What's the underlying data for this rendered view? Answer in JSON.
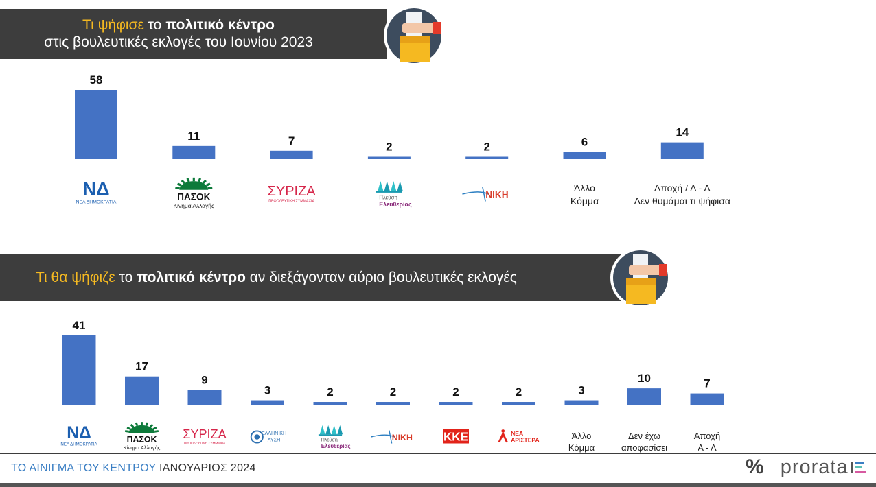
{
  "header1": {
    "part1": "Τι ψήφισε",
    "part2": " το ",
    "part3": "πολιτικό κέντρο",
    "line2": "στις βουλευτικές εκλογές του Ιουνίου 2023"
  },
  "header2": {
    "part1": "Τι θα ψήφιζε",
    "part2": " το ",
    "part3": "πολιτικό κέντρο",
    "part4": " αν διεξάγονταν αύριο βουλευτικές εκλογές"
  },
  "footer": {
    "part1": "ΤΟ ΑΙΝΙΓΜΑ ΤΟΥ ΚΕΝΤΡΟΥ",
    "part2": " ΙΑΝΟΥΑΡΙΟΣ 2024",
    "brand_symbol": "%",
    "brand_name": "prorata"
  },
  "logos": {
    "nd": [
      "ΝΕΑ ΔΗΜΟΚΡΑΤΙΑ"
    ],
    "pasok": [
      "ΠΑΣΟΚ",
      "Κίνημα Αλλαγής"
    ],
    "syriza": [
      "ΣΥΡΙΖΑ",
      "ΠΡΟΟΔΕΥΤΙΚΗ ΣΥΜΜΑΧΙΑ"
    ],
    "plefsi": [
      "Πλεύση",
      "Ελευθερίας"
    ],
    "niki": [
      "ΝΙΚΗ"
    ],
    "elliniki": [
      "ΕΛΛΗΝΙΚΗ",
      "ΛΥΣΗ"
    ],
    "kke": [
      "ΚΚΕ"
    ],
    "nea_aristera": [
      "ΝΕΑ",
      "ΑΡΙΣΤΕΡΑ"
    ]
  },
  "colors": {
    "bar": "#4472c4",
    "banner": "#3d3d3d",
    "accent_yellow": "#f5b921",
    "nd_blue": "#1c5fb0",
    "pasok_green": "#0d7a3a",
    "syriza_red": "#d6264a",
    "plefsi_purple": "#8a2a7a",
    "kke_red": "#e2231a"
  },
  "chart_data": [
    {
      "type": "bar",
      "categories": [
        "ΝΔ",
        "ΠΑΣΟΚ",
        "ΣΥΡΙΖΑ",
        "Πλεύση Ελευθερίας",
        "ΝΙΚΗ",
        "Άλλο Κόμμα",
        "Αποχή / Α - Λ Δεν θυμάμαι τι ψήφισα"
      ],
      "category_logos": [
        "nd",
        "pasok",
        "syriza",
        "plefsi",
        "niki",
        null,
        null
      ],
      "category_text": [
        null,
        null,
        null,
        null,
        null,
        [
          "Άλλο",
          "Κόμμα"
        ],
        [
          "Αποχή / Α - Λ",
          "Δεν θυμάμαι τι ψήφισα"
        ]
      ],
      "values": [
        58,
        11,
        7,
        2,
        2,
        6,
        14
      ],
      "ylim": [
        0,
        58
      ]
    },
    {
      "type": "bar",
      "categories": [
        "ΝΔ",
        "ΠΑΣΟΚ",
        "ΣΥΡΙΖΑ",
        "Ελληνική Λύση",
        "Πλεύση Ελευθερίας",
        "ΝΙΚΗ",
        "ΚΚΕ",
        "Νέα Αριστερά",
        "Άλλο Κόμμα",
        "Δεν έχω αποφασίσει",
        "Αποχή Α - Λ"
      ],
      "category_logos": [
        "nd",
        "pasok",
        "syriza",
        "elliniki",
        "plefsi",
        "niki",
        "kke",
        "nea_aristera",
        null,
        null,
        null
      ],
      "category_text": [
        null,
        null,
        null,
        null,
        null,
        null,
        null,
        null,
        [
          "Άλλο",
          "Κόμμα"
        ],
        [
          "Δεν έχω",
          "αποφασίσει"
        ],
        [
          "Αποχή",
          "Α - Λ"
        ]
      ],
      "values": [
        41,
        17,
        9,
        3,
        2,
        2,
        2,
        2,
        3,
        10,
        7
      ],
      "ylim": [
        0,
        41
      ]
    }
  ]
}
